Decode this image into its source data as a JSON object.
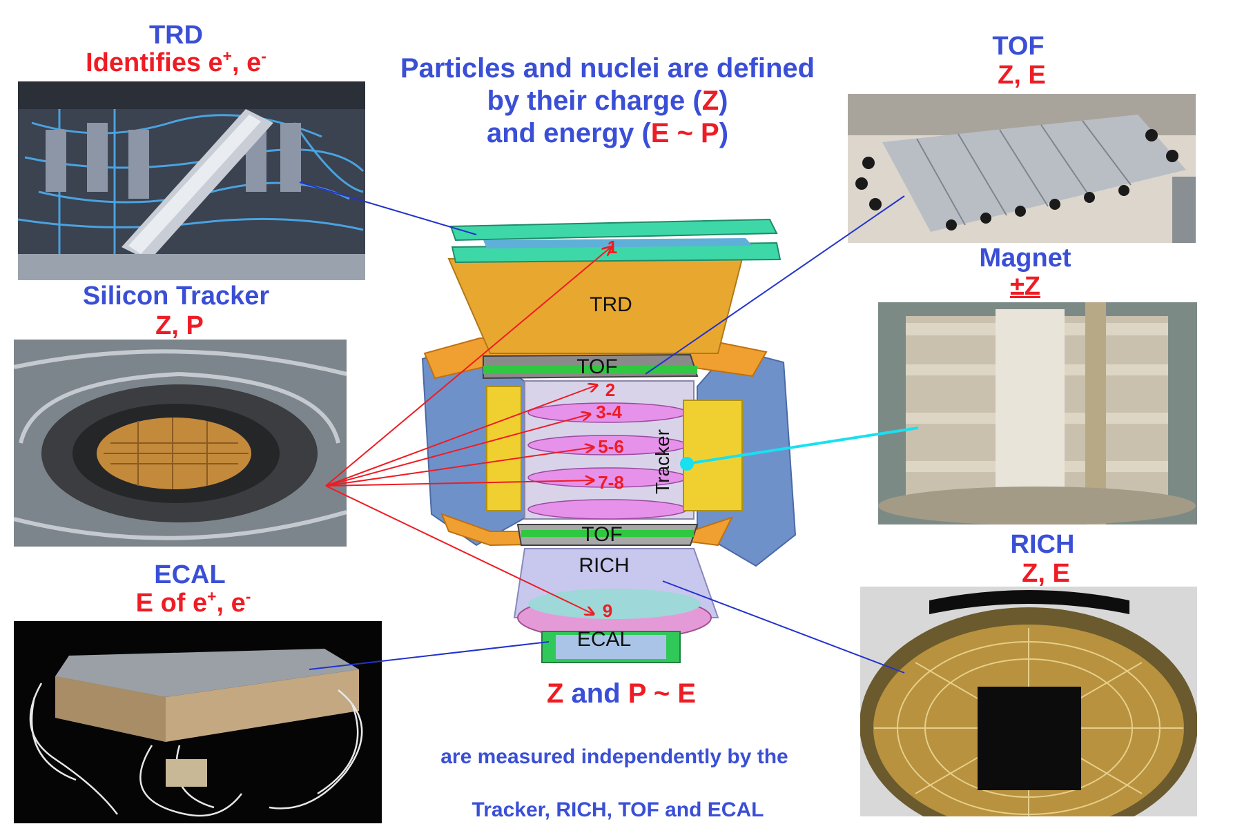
{
  "headline": {
    "line1": "Particles and nuclei are defined",
    "line2_pre": "by their charge (",
    "line2_z": "Z",
    "line2_post": ")",
    "line3_pre": "and energy (",
    "line3_e": "E ~ P",
    "line3_post": ")"
  },
  "panels": {
    "trd": {
      "title": "TRD",
      "sub_pre": "Identifies e",
      "sub_plus": "+",
      "sub_mid": ", e",
      "sub_minus": "-"
    },
    "tracker": {
      "title": "Silicon Tracker",
      "sub": "Z, P"
    },
    "ecal": {
      "title": "ECAL",
      "sub_pre": "E of e",
      "sub_plus": "+",
      "sub_mid": ", e",
      "sub_minus": "-"
    },
    "tof": {
      "title": "TOF",
      "sub": "Z, E"
    },
    "magnet": {
      "title": "Magnet",
      "sub": "±Z"
    },
    "rich": {
      "title": "RICH",
      "sub": "Z, E"
    }
  },
  "detector": {
    "trd": "TRD",
    "tof_upper": "TOF",
    "tof_lower": "TOF",
    "rich": "RICH",
    "ecal": "ECAL",
    "tracker": "Tracker",
    "layers": [
      "1",
      "2",
      "3-4",
      "5-6",
      "7-8",
      "9"
    ]
  },
  "footer": {
    "main_z": "Z",
    "main_and": "and",
    "main_pe": "P ~ E",
    "line1": "are measured independently by the",
    "line2": "Tracker, RICH, TOF  and ECAL"
  },
  "colors": {
    "label_blue": "#3a4fd6",
    "label_red": "#ee1c24",
    "pointer_blue": "#2233cc",
    "pointer_red": "#ee1c24",
    "pointer_cyan": "#19e0f0"
  }
}
